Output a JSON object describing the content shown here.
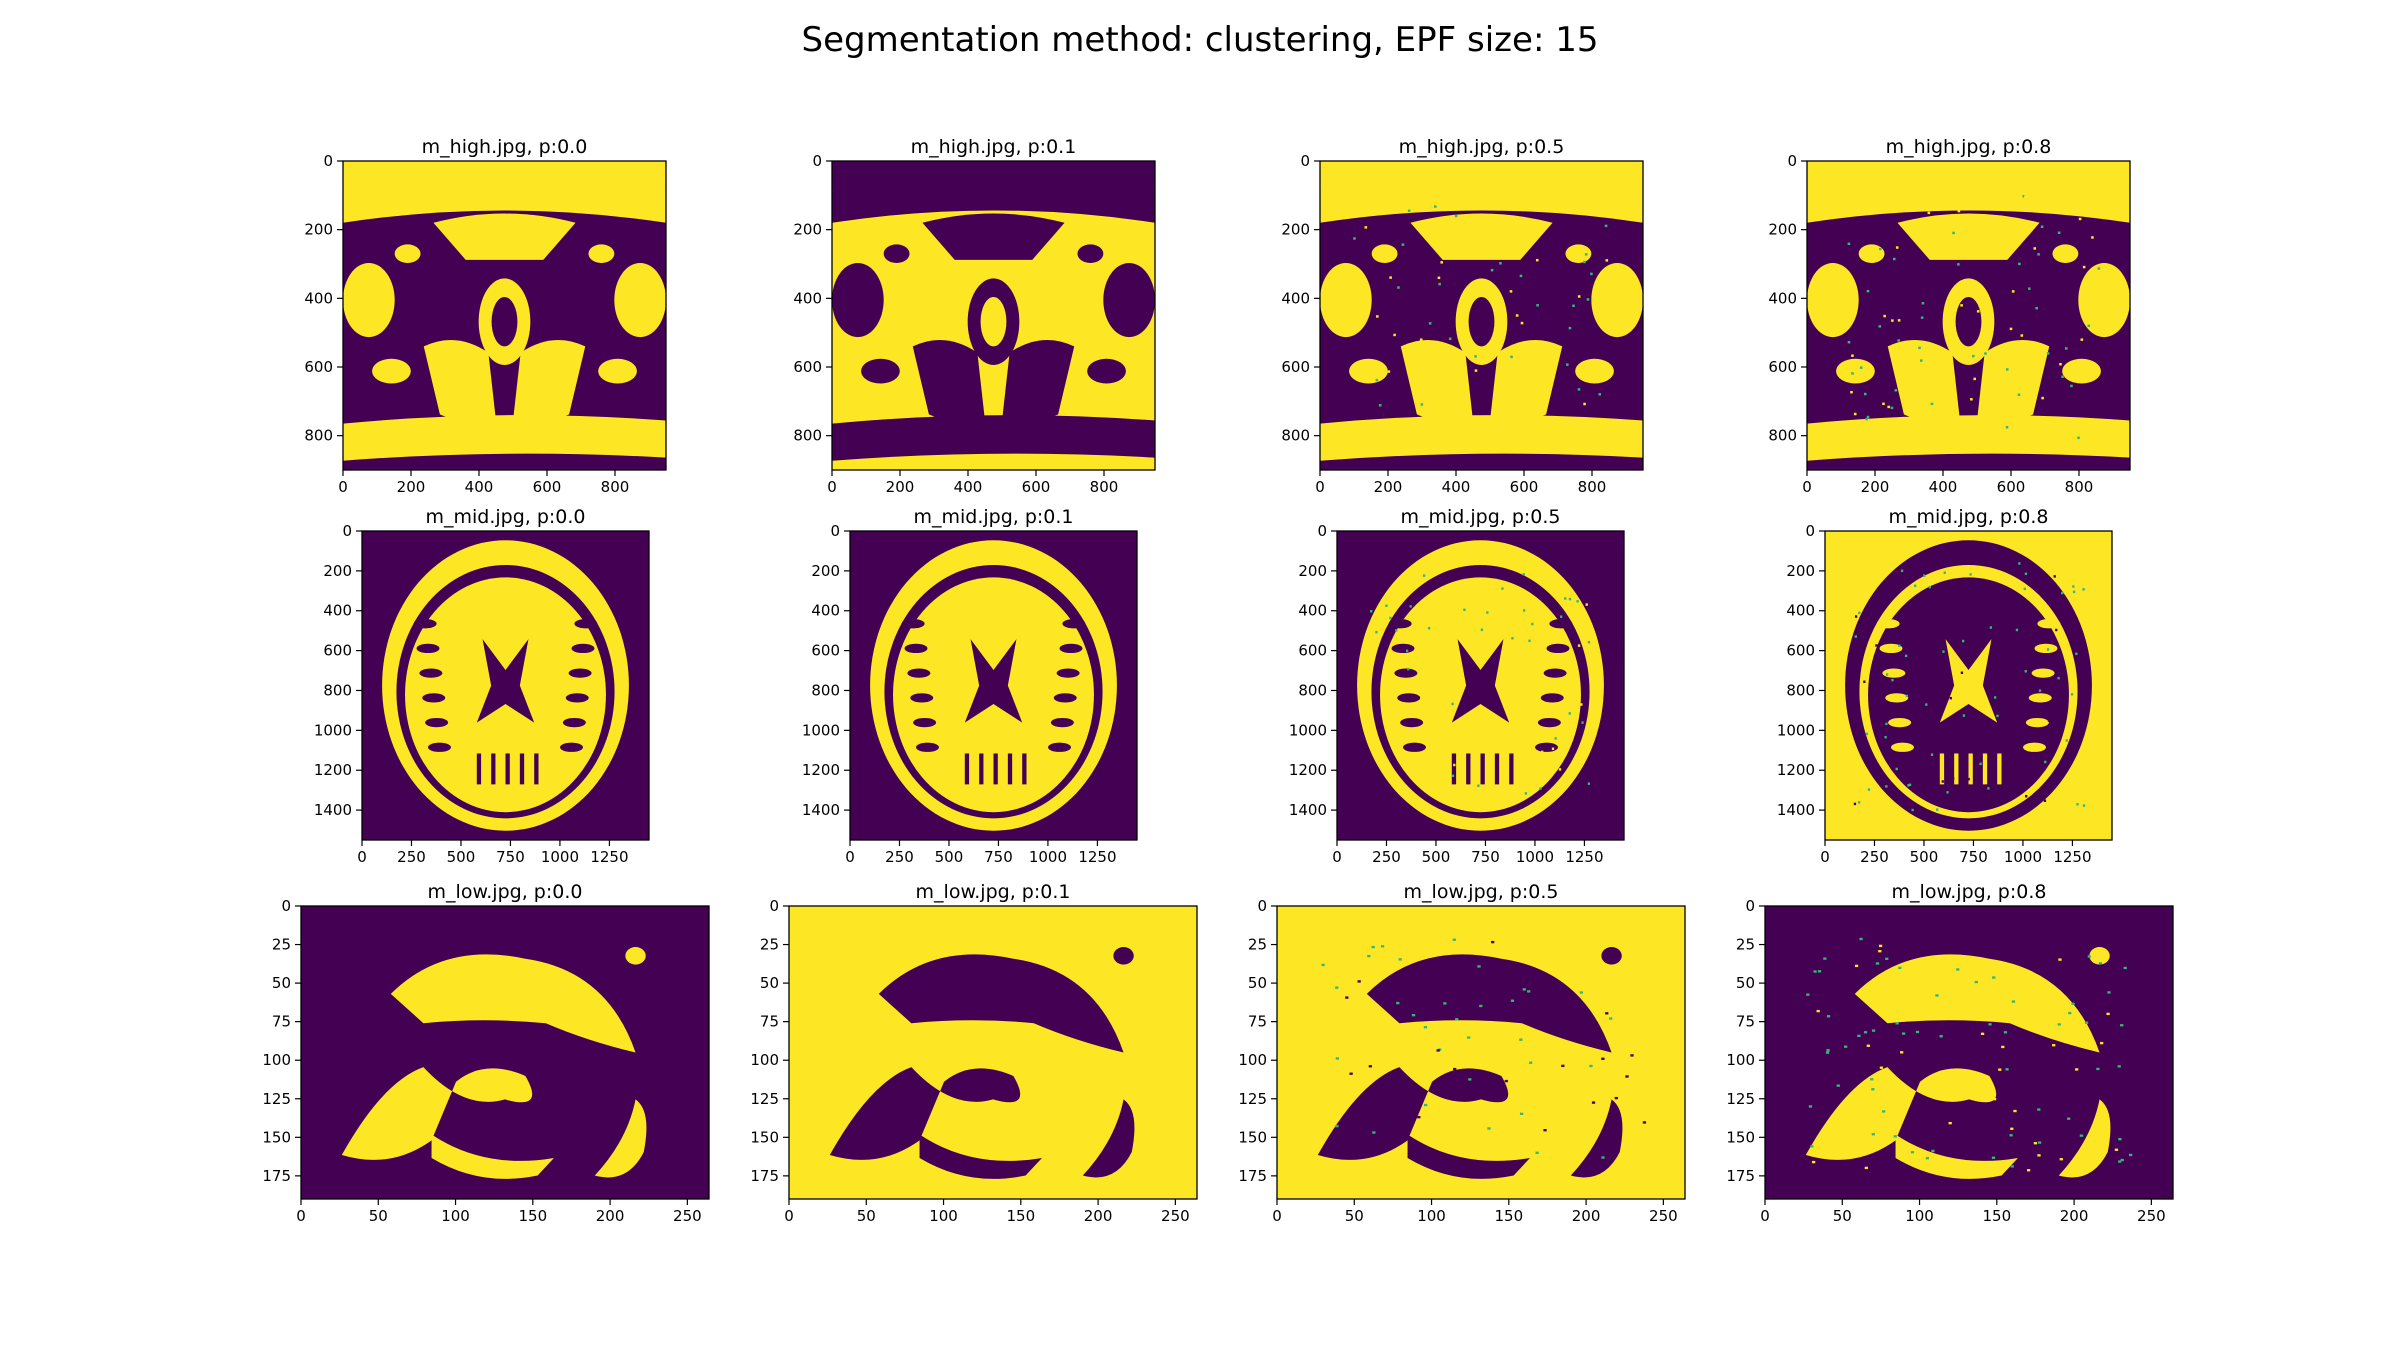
{
  "figure": {
    "suptitle": "Segmentation method: clustering, EPF size: 15"
  },
  "colors": {
    "low": "#440154",
    "high": "#fde725",
    "speckle": "#35b779"
  },
  "chart_data": [
    {
      "type": "heatmap",
      "title": "m_high.jpg, p:0.0",
      "image": "m_high.jpg",
      "p": "0.0",
      "inverted": false,
      "speckle": 0.0,
      "xticks": [
        "0",
        "200",
        "400",
        "600",
        "800"
      ],
      "yticks": [
        "0",
        "200",
        "400",
        "600",
        "800"
      ],
      "xlim": [
        0,
        950
      ],
      "ylim": [
        900,
        0
      ]
    },
    {
      "type": "heatmap",
      "title": "m_high.jpg, p:0.1",
      "image": "m_high.jpg",
      "p": "0.1",
      "inverted": true,
      "speckle": 0.0,
      "xticks": [
        "0",
        "200",
        "400",
        "600",
        "800"
      ],
      "yticks": [
        "0",
        "200",
        "400",
        "600",
        "800"
      ],
      "xlim": [
        0,
        950
      ],
      "ylim": [
        900,
        0
      ]
    },
    {
      "type": "heatmap",
      "title": "m_high.jpg, p:0.5",
      "image": "m_high.jpg",
      "p": "0.5",
      "inverted": false,
      "speckle": 0.5,
      "xticks": [
        "0",
        "200",
        "400",
        "600",
        "800"
      ],
      "yticks": [
        "0",
        "200",
        "400",
        "600",
        "800"
      ],
      "xlim": [
        0,
        950
      ],
      "ylim": [
        900,
        0
      ]
    },
    {
      "type": "heatmap",
      "title": "m_high.jpg, p:0.8",
      "image": "m_high.jpg",
      "p": "0.8",
      "inverted": false,
      "speckle": 0.8,
      "xticks": [
        "0",
        "200",
        "400",
        "600",
        "800"
      ],
      "yticks": [
        "0",
        "200",
        "400",
        "600",
        "800"
      ],
      "xlim": [
        0,
        950
      ],
      "ylim": [
        900,
        0
      ]
    },
    {
      "type": "heatmap",
      "title": "m_mid.jpg, p:0.0",
      "image": "m_mid.jpg",
      "p": "0.0",
      "inverted": false,
      "speckle": 0.0,
      "xticks": [
        "0",
        "250",
        "500",
        "750",
        "1000",
        "1250"
      ],
      "yticks": [
        "0",
        "200",
        "400",
        "600",
        "800",
        "1000",
        "1200",
        "1400"
      ],
      "xlim": [
        0,
        1450
      ],
      "ylim": [
        1550,
        0
      ]
    },
    {
      "type": "heatmap",
      "title": "m_mid.jpg, p:0.1",
      "image": "m_mid.jpg",
      "p": "0.1",
      "inverted": false,
      "speckle": 0.0,
      "xticks": [
        "0",
        "250",
        "500",
        "750",
        "1000",
        "1250"
      ],
      "yticks": [
        "0",
        "200",
        "400",
        "600",
        "800",
        "1000",
        "1200",
        "1400"
      ],
      "xlim": [
        0,
        1450
      ],
      "ylim": [
        1550,
        0
      ]
    },
    {
      "type": "heatmap",
      "title": "m_mid.jpg, p:0.5",
      "image": "m_mid.jpg",
      "p": "0.5",
      "inverted": false,
      "speckle": 0.5,
      "xticks": [
        "0",
        "250",
        "500",
        "750",
        "1000",
        "1250"
      ],
      "yticks": [
        "0",
        "200",
        "400",
        "600",
        "800",
        "1000",
        "1200",
        "1400"
      ],
      "xlim": [
        0,
        1450
      ],
      "ylim": [
        1550,
        0
      ]
    },
    {
      "type": "heatmap",
      "title": "m_mid.jpg, p:0.8",
      "image": "m_mid.jpg",
      "p": "0.8",
      "inverted": true,
      "speckle": 0.8,
      "xticks": [
        "0",
        "250",
        "500",
        "750",
        "1000",
        "1250"
      ],
      "yticks": [
        "0",
        "200",
        "400",
        "600",
        "800",
        "1000",
        "1200",
        "1400"
      ],
      "xlim": [
        0,
        1450
      ],
      "ylim": [
        1550,
        0
      ]
    },
    {
      "type": "heatmap",
      "title": "m_low.jpg, p:0.0",
      "image": "m_low.jpg",
      "p": "0.0",
      "inverted": false,
      "speckle": 0.0,
      "xticks": [
        "0",
        "50",
        "100",
        "150",
        "200",
        "250"
      ],
      "yticks": [
        "0",
        "25",
        "50",
        "75",
        "100",
        "125",
        "150",
        "175"
      ],
      "xlim": [
        0,
        264
      ],
      "ylim": [
        190,
        0
      ]
    },
    {
      "type": "heatmap",
      "title": "m_low.jpg, p:0.1",
      "image": "m_low.jpg",
      "p": "0.1",
      "inverted": true,
      "speckle": 0.0,
      "xticks": [
        "0",
        "50",
        "100",
        "150",
        "200",
        "250"
      ],
      "yticks": [
        "0",
        "25",
        "50",
        "75",
        "100",
        "125",
        "150",
        "175"
      ],
      "xlim": [
        0,
        264
      ],
      "ylim": [
        190,
        0
      ]
    },
    {
      "type": "heatmap",
      "title": "m_low.jpg, p:0.5",
      "image": "m_low.jpg",
      "p": "0.5",
      "inverted": true,
      "speckle": 0.5,
      "xticks": [
        "0",
        "50",
        "100",
        "150",
        "200",
        "250"
      ],
      "yticks": [
        "0",
        "25",
        "50",
        "75",
        "100",
        "125",
        "150",
        "175"
      ],
      "xlim": [
        0,
        264
      ],
      "ylim": [
        190,
        0
      ]
    },
    {
      "type": "heatmap",
      "title": "m_low.jpg, p:0.8",
      "image": "m_low.jpg",
      "p": "0.8",
      "inverted": false,
      "speckle": 0.8,
      "xticks": [
        "0",
        "50",
        "100",
        "150",
        "200",
        "250"
      ],
      "yticks": [
        "0",
        "25",
        "50",
        "75",
        "100",
        "125",
        "150",
        "175"
      ],
      "xlim": [
        0,
        264
      ],
      "ylim": [
        190,
        0
      ]
    }
  ]
}
